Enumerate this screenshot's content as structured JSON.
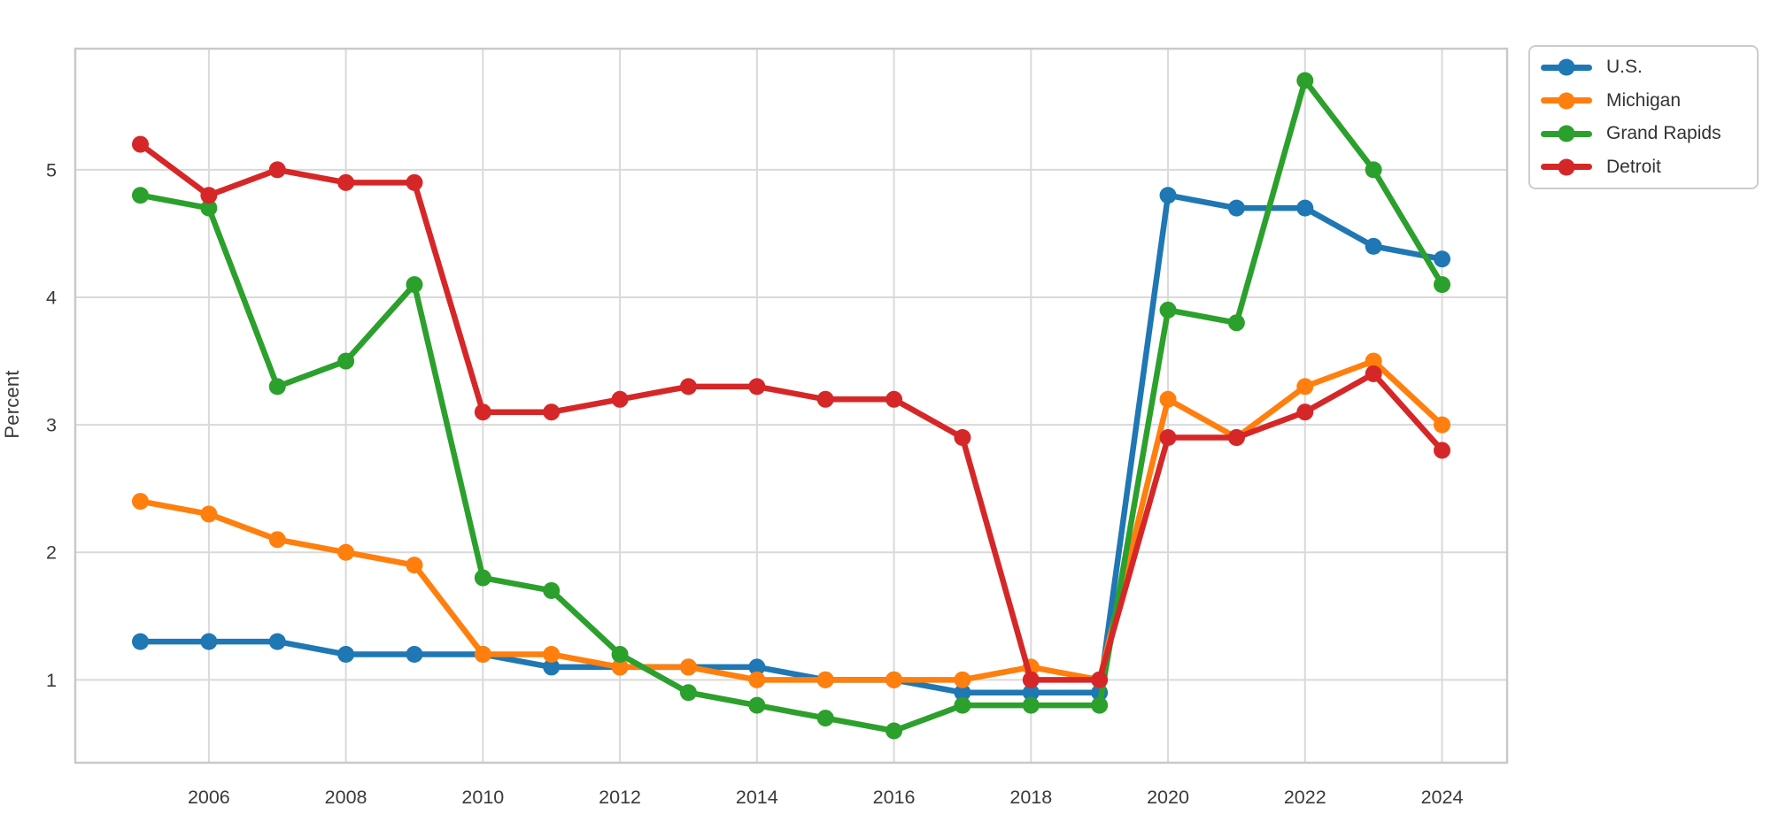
{
  "chart_data": {
    "type": "line",
    "title": "",
    "xlabel": "",
    "ylabel": "Percent",
    "x": [
      2005,
      2006,
      2007,
      2008,
      2009,
      2010,
      2011,
      2012,
      2013,
      2014,
      2015,
      2016,
      2017,
      2018,
      2019,
      2020,
      2021,
      2022,
      2023,
      2024
    ],
    "series": [
      {
        "name": "U.S.",
        "color": "#1f77b4",
        "values": [
          1.3,
          1.3,
          1.3,
          1.2,
          1.2,
          1.2,
          1.1,
          1.1,
          1.1,
          1.1,
          1.0,
          1.0,
          0.9,
          0.9,
          0.9,
          4.8,
          4.7,
          4.7,
          4.4,
          4.3
        ]
      },
      {
        "name": "Michigan",
        "color": "#ff7f0e",
        "values": [
          2.4,
          2.3,
          2.1,
          2.0,
          1.9,
          1.2,
          1.2,
          1.1,
          1.1,
          1.0,
          1.0,
          1.0,
          1.0,
          1.1,
          1.0,
          3.2,
          2.9,
          3.3,
          3.5,
          3.0
        ]
      },
      {
        "name": "Grand Rapids",
        "color": "#2ca02c",
        "values": [
          4.8,
          4.7,
          3.3,
          3.5,
          4.1,
          1.8,
          1.7,
          1.2,
          0.9,
          0.8,
          0.7,
          0.6,
          0.8,
          0.8,
          0.8,
          3.9,
          3.8,
          5.7,
          5.0,
          4.1
        ]
      },
      {
        "name": "Detroit",
        "color": "#d62728",
        "values": [
          5.2,
          4.8,
          5.0,
          4.9,
          4.9,
          3.1,
          3.1,
          3.2,
          3.3,
          3.3,
          3.2,
          3.2,
          2.9,
          1.0,
          1.0,
          2.9,
          2.9,
          3.1,
          3.4,
          2.8
        ]
      }
    ],
    "xticks": [
      2006,
      2008,
      2010,
      2012,
      2014,
      2016,
      2018,
      2020,
      2022,
      2024
    ],
    "yticks": [
      1,
      2,
      3,
      4,
      5
    ],
    "xlim": [
      2004.05,
      2024.95
    ],
    "ylim": [
      0.35,
      5.95
    ],
    "grid": true,
    "legend": {
      "position": "top-right-outside",
      "entries": [
        "U.S.",
        "Michigan",
        "Grand Rapids",
        "Detroit"
      ]
    }
  },
  "style": {
    "background": "#ffffff",
    "grid_color": "#d9d9d9",
    "spine_color": "#c9c9c9",
    "tick_label_color": "#3a3a3a",
    "legend_border_color": "#cccccc",
    "legend_text_color": "#333333"
  }
}
